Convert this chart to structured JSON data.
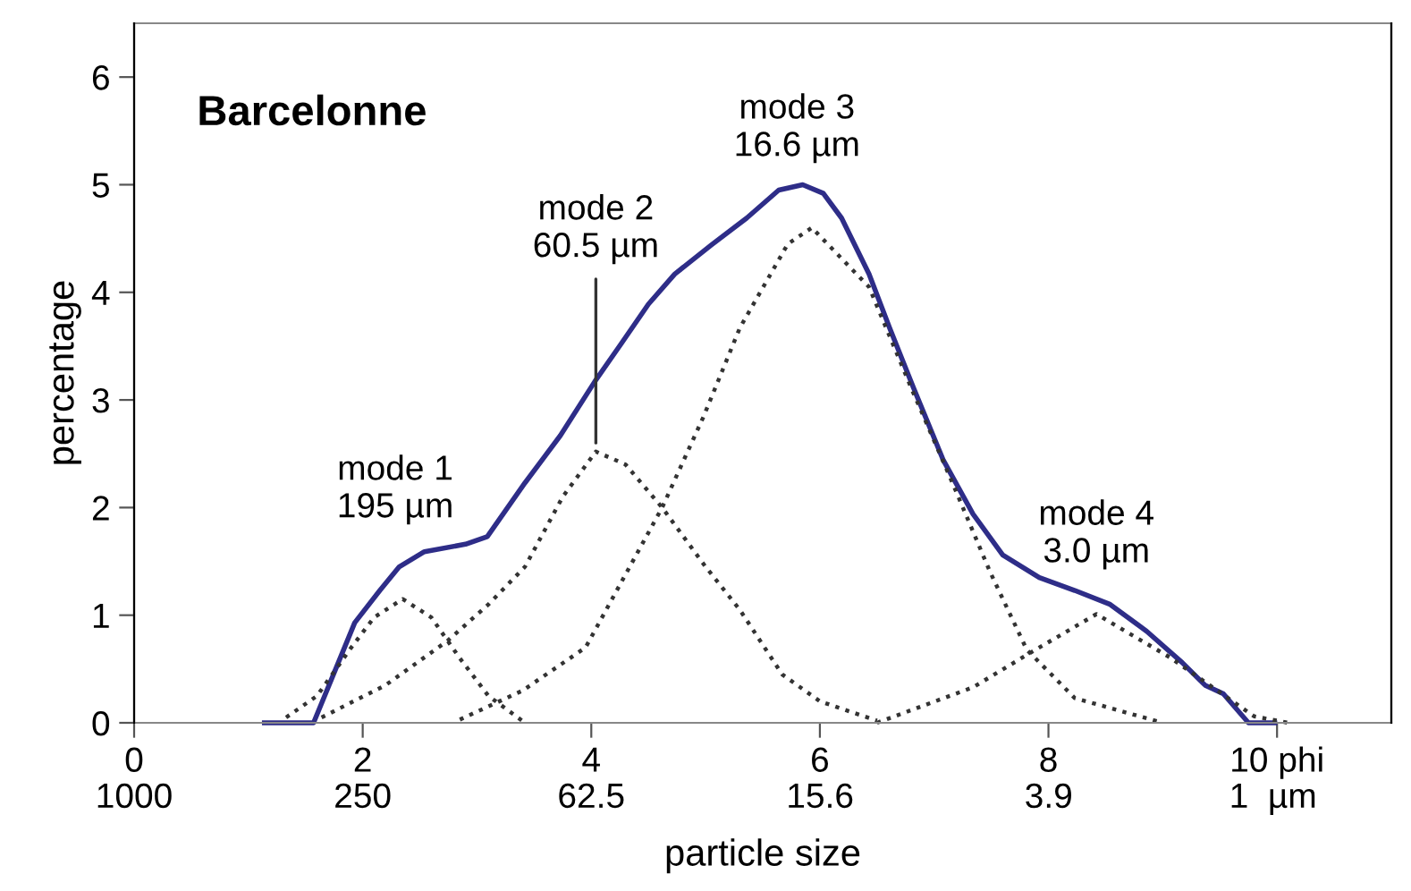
{
  "chart_data": {
    "type": "line",
    "title": "Barcelonne",
    "xlabel": "particle size",
    "ylabel": "percentage",
    "xlim": [
      0,
      11
    ],
    "ylim": [
      0,
      6.5
    ],
    "xticks": [
      0,
      2,
      4,
      6,
      8,
      {
        "value": 10,
        "label": "10 phi"
      }
    ],
    "log": "x2",
    "x2lim": [
      1000,
      0.488
    ],
    "x2ticks": [
      1000,
      250,
      62.5,
      15.6,
      3.9,
      {
        "value": 1,
        "label": "1  µm"
      }
    ],
    "yticks": [
      0,
      1,
      2,
      3,
      4,
      5,
      6
    ],
    "grid": false,
    "legend": false,
    "series": [
      {
        "color": "#2e2d88",
        "line_style": "solid",
        "x": [
          1.14,
          1.57,
          1.93,
          2.15,
          2.32,
          2.54,
          2.9,
          3.09,
          3.42,
          3.73,
          4.03,
          4.26,
          4.5,
          4.73,
          5.05,
          5.36,
          5.64,
          5.85,
          6.03,
          6.19,
          6.43,
          6.61,
          6.82,
          7.08,
          7.34,
          7.6,
          7.92,
          8.23,
          8.54,
          8.86,
          9.17,
          9.37,
          9.53,
          9.75,
          9.98
        ],
        "values": [
          0,
          0,
          0.93,
          1.23,
          1.45,
          1.59,
          1.66,
          1.73,
          2.23,
          2.67,
          3.17,
          3.52,
          3.89,
          4.17,
          4.44,
          4.69,
          4.95,
          5.0,
          4.92,
          4.69,
          4.17,
          3.67,
          3.11,
          2.44,
          1.94,
          1.56,
          1.35,
          1.23,
          1.1,
          0.85,
          0.56,
          0.35,
          0.27,
          0,
          0
        ]
      },
      {
        "color": "#333333",
        "line_style": "dotted",
        "x": [
          1.33,
          1.6,
          1.9,
          2.1,
          2.35,
          2.6,
          2.85,
          3.1,
          3.42
        ],
        "values": [
          0.05,
          0.25,
          0.7,
          0.98,
          1.15,
          0.98,
          0.6,
          0.25,
          0
        ]
      },
      {
        "color": "#333333",
        "line_style": "dotted",
        "x": [
          1.64,
          2.2,
          2.74,
          3.1,
          3.42,
          3.75,
          4.04,
          4.3,
          4.62,
          5.0,
          5.3,
          5.67,
          6.0,
          6.5
        ],
        "values": [
          0.05,
          0.35,
          0.76,
          1.1,
          1.45,
          2.1,
          2.52,
          2.4,
          2.0,
          1.45,
          1.05,
          0.45,
          0.2,
          0.02
        ]
      },
      {
        "color": "#333333",
        "line_style": "dotted",
        "x": [
          2.85,
          3.4,
          3.95,
          4.62,
          4.98,
          5.3,
          5.72,
          5.93,
          6.43,
          6.82,
          7.16,
          7.49,
          7.81,
          8.23,
          9.0
        ],
        "values": [
          0.03,
          0.3,
          0.7,
          2.0,
          2.84,
          3.67,
          4.45,
          4.6,
          4.05,
          3.06,
          2.23,
          1.4,
          0.68,
          0.23,
          0
        ]
      },
      {
        "color": "#333333",
        "line_style": "dotted",
        "x": [
          6.5,
          7.34,
          7.84,
          8.42,
          9.06,
          9.8,
          10.1
        ],
        "values": [
          0,
          0.33,
          0.65,
          1.01,
          0.61,
          0.06,
          0
        ]
      }
    ],
    "annotations": [
      {
        "text": "mode 1\n195 µm",
        "x": 2.35,
        "y": 1.15
      },
      {
        "text": "mode 2\n60.5 µm",
        "x": 4.04,
        "y": 2.6
      },
      {
        "text": "mode 3\n16.6 µm",
        "x": 5.93,
        "y": 4.6
      },
      {
        "text": "mode 4\n3.0 µm",
        "x": 8.42,
        "y": 1.01
      }
    ]
  }
}
